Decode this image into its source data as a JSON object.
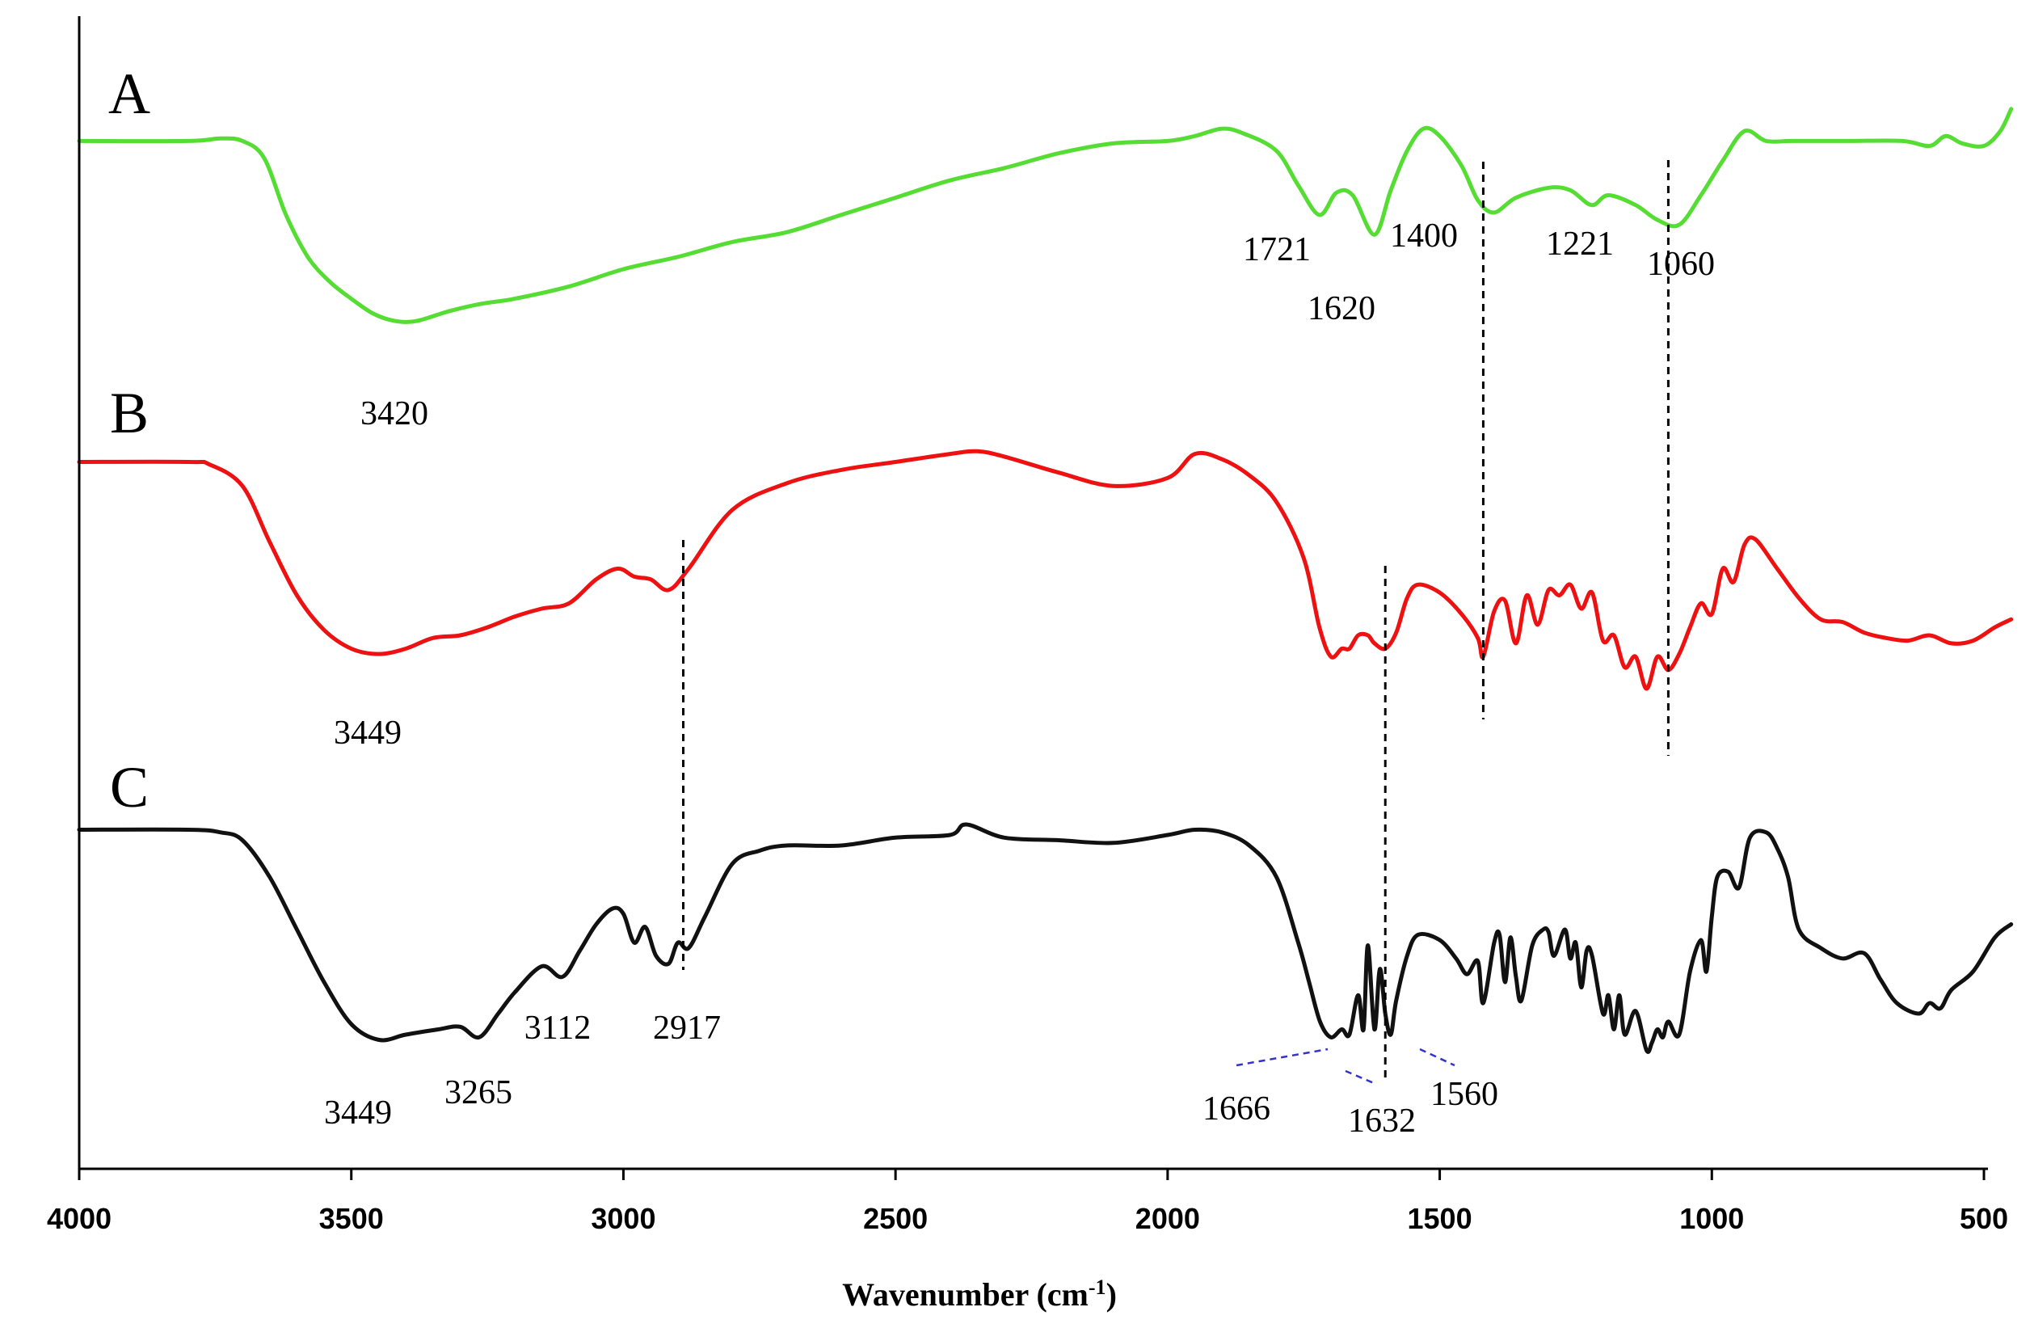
{
  "chart_data": {
    "type": "line",
    "title": "",
    "xlabel": "Wavenumber (cm-1)",
    "xlabel_parts": {
      "main": "Wavenumber (cm",
      "sup": "-1",
      "tail": ")"
    },
    "ylabel": "",
    "xlim": [
      4000,
      500
    ],
    "x_reversed": true,
    "x_ticks": [
      4000,
      3500,
      3000,
      2500,
      2000,
      1500,
      1000,
      500
    ],
    "x_tick_labels": [
      "4000",
      "3500",
      "3000",
      "2500",
      "2000",
      "1500",
      "1000",
      "500"
    ],
    "grid": false,
    "legend": "none",
    "series": [
      {
        "name": "A",
        "color": "#55dd33",
        "points": [
          [
            4000,
            0.92
          ],
          [
            3800,
            0.92
          ],
          [
            3740,
            0.93
          ],
          [
            3700,
            0.92
          ],
          [
            3660,
            0.85
          ],
          [
            3620,
            0.62
          ],
          [
            3580,
            0.45
          ],
          [
            3540,
            0.35
          ],
          [
            3500,
            0.28
          ],
          [
            3460,
            0.22
          ],
          [
            3420,
            0.19
          ],
          [
            3380,
            0.19
          ],
          [
            3320,
            0.23
          ],
          [
            3260,
            0.26
          ],
          [
            3200,
            0.28
          ],
          [
            3100,
            0.33
          ],
          [
            3000,
            0.4
          ],
          [
            2900,
            0.45
          ],
          [
            2800,
            0.51
          ],
          [
            2700,
            0.55
          ],
          [
            2600,
            0.62
          ],
          [
            2500,
            0.69
          ],
          [
            2400,
            0.76
          ],
          [
            2300,
            0.81
          ],
          [
            2200,
            0.87
          ],
          [
            2100,
            0.91
          ],
          [
            2000,
            0.92
          ],
          [
            1950,
            0.94
          ],
          [
            1900,
            0.97
          ],
          [
            1860,
            0.95
          ],
          [
            1800,
            0.88
          ],
          [
            1760,
            0.74
          ],
          [
            1721,
            0.62
          ],
          [
            1690,
            0.71
          ],
          [
            1660,
            0.7
          ],
          [
            1620,
            0.54
          ],
          [
            1590,
            0.72
          ],
          [
            1560,
            0.88
          ],
          [
            1530,
            0.97
          ],
          [
            1500,
            0.94
          ],
          [
            1460,
            0.82
          ],
          [
            1430,
            0.68
          ],
          [
            1400,
            0.63
          ],
          [
            1360,
            0.69
          ],
          [
            1300,
            0.73
          ],
          [
            1260,
            0.72
          ],
          [
            1221,
            0.66
          ],
          [
            1190,
            0.7
          ],
          [
            1140,
            0.66
          ],
          [
            1100,
            0.6
          ],
          [
            1060,
            0.58
          ],
          [
            1020,
            0.7
          ],
          [
            980,
            0.84
          ],
          [
            940,
            0.96
          ],
          [
            900,
            0.92
          ],
          [
            850,
            0.92
          ],
          [
            750,
            0.92
          ],
          [
            650,
            0.92
          ],
          [
            600,
            0.9
          ],
          [
            570,
            0.94
          ],
          [
            540,
            0.91
          ],
          [
            500,
            0.9
          ],
          [
            470,
            0.96
          ],
          [
            450,
            1.05
          ]
        ]
      },
      {
        "name": "B",
        "color": "#ee1111",
        "points": [
          [
            4000,
            0.95
          ],
          [
            3800,
            0.95
          ],
          [
            3760,
            0.94
          ],
          [
            3700,
            0.86
          ],
          [
            3650,
            0.65
          ],
          [
            3600,
            0.45
          ],
          [
            3550,
            0.32
          ],
          [
            3500,
            0.25
          ],
          [
            3449,
            0.23
          ],
          [
            3400,
            0.25
          ],
          [
            3350,
            0.29
          ],
          [
            3300,
            0.3
          ],
          [
            3250,
            0.33
          ],
          [
            3200,
            0.37
          ],
          [
            3150,
            0.4
          ],
          [
            3100,
            0.42
          ],
          [
            3050,
            0.51
          ],
          [
            3010,
            0.55
          ],
          [
            2980,
            0.52
          ],
          [
            2950,
            0.51
          ],
          [
            2917,
            0.47
          ],
          [
            2880,
            0.55
          ],
          [
            2800,
            0.77
          ],
          [
            2700,
            0.87
          ],
          [
            2600,
            0.92
          ],
          [
            2500,
            0.95
          ],
          [
            2400,
            0.98
          ],
          [
            2350,
            0.99
          ],
          [
            2300,
            0.97
          ],
          [
            2200,
            0.91
          ],
          [
            2100,
            0.86
          ],
          [
            2000,
            0.89
          ],
          [
            1950,
            0.98
          ],
          [
            1900,
            0.96
          ],
          [
            1850,
            0.9
          ],
          [
            1800,
            0.8
          ],
          [
            1750,
            0.59
          ],
          [
            1721,
            0.33
          ],
          [
            1700,
            0.22
          ],
          [
            1680,
            0.25
          ],
          [
            1666,
            0.25
          ],
          [
            1650,
            0.3
          ],
          [
            1632,
            0.3
          ],
          [
            1620,
            0.27
          ],
          [
            1600,
            0.25
          ],
          [
            1580,
            0.31
          ],
          [
            1560,
            0.44
          ],
          [
            1540,
            0.49
          ],
          [
            1500,
            0.46
          ],
          [
            1460,
            0.38
          ],
          [
            1430,
            0.29
          ],
          [
            1420,
            0.22
          ],
          [
            1400,
            0.39
          ],
          [
            1380,
            0.43
          ],
          [
            1360,
            0.27
          ],
          [
            1340,
            0.45
          ],
          [
            1320,
            0.34
          ],
          [
            1300,
            0.47
          ],
          [
            1280,
            0.45
          ],
          [
            1260,
            0.49
          ],
          [
            1240,
            0.4
          ],
          [
            1220,
            0.46
          ],
          [
            1200,
            0.28
          ],
          [
            1180,
            0.3
          ],
          [
            1160,
            0.18
          ],
          [
            1140,
            0.22
          ],
          [
            1120,
            0.1
          ],
          [
            1100,
            0.22
          ],
          [
            1080,
            0.17
          ],
          [
            1060,
            0.23
          ],
          [
            1040,
            0.33
          ],
          [
            1020,
            0.42
          ],
          [
            1000,
            0.38
          ],
          [
            980,
            0.55
          ],
          [
            960,
            0.5
          ],
          [
            940,
            0.64
          ],
          [
            920,
            0.66
          ],
          [
            880,
            0.55
          ],
          [
            840,
            0.44
          ],
          [
            800,
            0.36
          ],
          [
            760,
            0.35
          ],
          [
            720,
            0.31
          ],
          [
            680,
            0.29
          ],
          [
            640,
            0.28
          ],
          [
            600,
            0.3
          ],
          [
            560,
            0.27
          ],
          [
            520,
            0.28
          ],
          [
            480,
            0.33
          ],
          [
            450,
            0.36
          ]
        ]
      },
      {
        "name": "C",
        "color": "#111111",
        "points": [
          [
            4000,
            0.98
          ],
          [
            3800,
            0.98
          ],
          [
            3740,
            0.97
          ],
          [
            3700,
            0.94
          ],
          [
            3650,
            0.8
          ],
          [
            3600,
            0.6
          ],
          [
            3550,
            0.4
          ],
          [
            3500,
            0.24
          ],
          [
            3449,
            0.18
          ],
          [
            3400,
            0.2
          ],
          [
            3340,
            0.22
          ],
          [
            3300,
            0.23
          ],
          [
            3265,
            0.19
          ],
          [
            3230,
            0.28
          ],
          [
            3200,
            0.36
          ],
          [
            3150,
            0.46
          ],
          [
            3112,
            0.42
          ],
          [
            3080,
            0.52
          ],
          [
            3050,
            0.62
          ],
          [
            3020,
            0.68
          ],
          [
            3000,
            0.66
          ],
          [
            2980,
            0.55
          ],
          [
            2960,
            0.61
          ],
          [
            2940,
            0.5
          ],
          [
            2917,
            0.47
          ],
          [
            2900,
            0.55
          ],
          [
            2880,
            0.53
          ],
          [
            2850,
            0.65
          ],
          [
            2800,
            0.85
          ],
          [
            2750,
            0.9
          ],
          [
            2700,
            0.92
          ],
          [
            2600,
            0.92
          ],
          [
            2500,
            0.95
          ],
          [
            2400,
            0.96
          ],
          [
            2370,
            1.0
          ],
          [
            2300,
            0.95
          ],
          [
            2200,
            0.94
          ],
          [
            2100,
            0.93
          ],
          [
            2000,
            0.96
          ],
          [
            1950,
            0.98
          ],
          [
            1900,
            0.97
          ],
          [
            1850,
            0.92
          ],
          [
            1800,
            0.8
          ],
          [
            1760,
            0.55
          ],
          [
            1740,
            0.4
          ],
          [
            1720,
            0.25
          ],
          [
            1700,
            0.19
          ],
          [
            1680,
            0.22
          ],
          [
            1666,
            0.2
          ],
          [
            1650,
            0.35
          ],
          [
            1640,
            0.22
          ],
          [
            1632,
            0.54
          ],
          [
            1620,
            0.22
          ],
          [
            1610,
            0.45
          ],
          [
            1600,
            0.28
          ],
          [
            1590,
            0.2
          ],
          [
            1580,
            0.33
          ],
          [
            1560,
            0.5
          ],
          [
            1540,
            0.58
          ],
          [
            1500,
            0.56
          ],
          [
            1470,
            0.49
          ],
          [
            1450,
            0.43
          ],
          [
            1430,
            0.48
          ],
          [
            1420,
            0.32
          ],
          [
            1400,
            0.55
          ],
          [
            1390,
            0.58
          ],
          [
            1380,
            0.4
          ],
          [
            1370,
            0.57
          ],
          [
            1360,
            0.42
          ],
          [
            1350,
            0.33
          ],
          [
            1330,
            0.54
          ],
          [
            1310,
            0.6
          ],
          [
            1300,
            0.59
          ],
          [
            1290,
            0.5
          ],
          [
            1270,
            0.6
          ],
          [
            1260,
            0.49
          ],
          [
            1250,
            0.55
          ],
          [
            1240,
            0.38
          ],
          [
            1230,
            0.52
          ],
          [
            1220,
            0.5
          ],
          [
            1200,
            0.28
          ],
          [
            1190,
            0.35
          ],
          [
            1180,
            0.22
          ],
          [
            1170,
            0.35
          ],
          [
            1160,
            0.2
          ],
          [
            1140,
            0.29
          ],
          [
            1120,
            0.14
          ],
          [
            1110,
            0.17
          ],
          [
            1100,
            0.22
          ],
          [
            1090,
            0.19
          ],
          [
            1080,
            0.25
          ],
          [
            1060,
            0.2
          ],
          [
            1040,
            0.44
          ],
          [
            1020,
            0.56
          ],
          [
            1010,
            0.44
          ],
          [
            1000,
            0.65
          ],
          [
            990,
            0.8
          ],
          [
            970,
            0.82
          ],
          [
            950,
            0.76
          ],
          [
            930,
            0.95
          ],
          [
            900,
            0.97
          ],
          [
            880,
            0.91
          ],
          [
            860,
            0.8
          ],
          [
            840,
            0.6
          ],
          [
            800,
            0.53
          ],
          [
            760,
            0.49
          ],
          [
            720,
            0.51
          ],
          [
            690,
            0.41
          ],
          [
            660,
            0.32
          ],
          [
            620,
            0.28
          ],
          [
            600,
            0.32
          ],
          [
            580,
            0.3
          ],
          [
            560,
            0.37
          ],
          [
            520,
            0.44
          ],
          [
            480,
            0.57
          ],
          [
            450,
            0.62
          ]
        ]
      }
    ],
    "panel_labels": [
      "A",
      "B",
      "C"
    ],
    "annotations": [
      {
        "series": "A",
        "text": "3420"
      },
      {
        "series": "A",
        "text": "1721"
      },
      {
        "series": "A",
        "text": "1620"
      },
      {
        "series": "A",
        "text": "1400"
      },
      {
        "series": "A",
        "text": "1221"
      },
      {
        "series": "A",
        "text": "1060"
      },
      {
        "series": "B",
        "text": "3449"
      },
      {
        "series": "C",
        "text": "3449"
      },
      {
        "series": "C",
        "text": "3265"
      },
      {
        "series": "C",
        "text": "3112"
      },
      {
        "series": "C",
        "text": "2917"
      },
      {
        "series": "C",
        "text": "1666"
      },
      {
        "series": "C",
        "text": "1632"
      },
      {
        "series": "C",
        "text": "1560"
      }
    ],
    "reference_lines_cm": [
      2890,
      1600,
      1420,
      1080
    ]
  }
}
